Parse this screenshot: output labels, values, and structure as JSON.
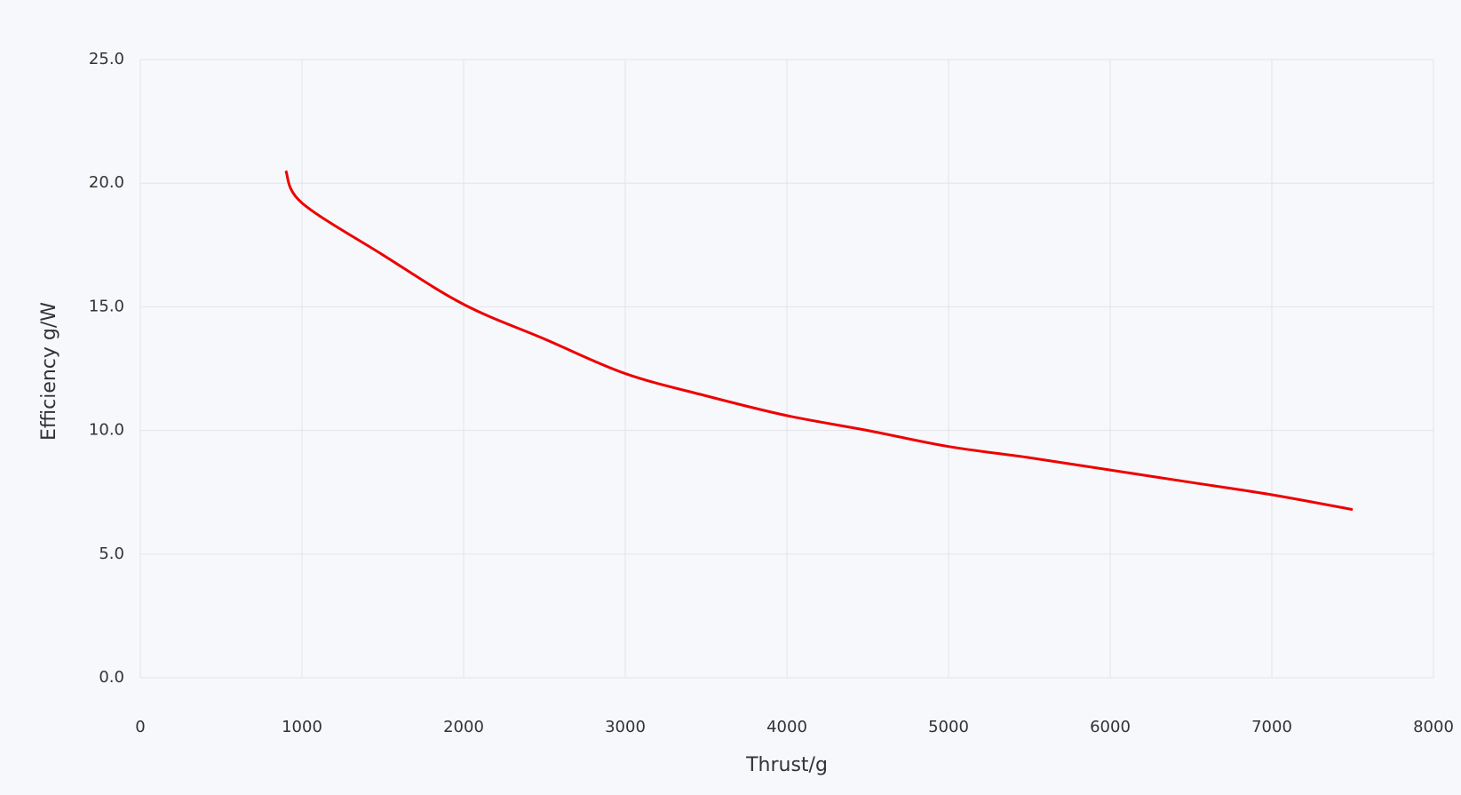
{
  "chart_data": {
    "type": "line",
    "x_label": "Thrust/g",
    "y_label": "Efficiency g/W",
    "x": [
      900,
      1000,
      1500,
      2000,
      2500,
      3000,
      3500,
      4000,
      4500,
      5000,
      5500,
      6000,
      6500,
      7000,
      7500
    ],
    "series": [
      {
        "color": "#ee0000",
        "values": [
          20.5,
          19.2,
          17.1,
          15.1,
          13.7,
          12.3,
          11.4,
          10.6,
          10.0,
          9.35,
          8.9,
          8.4,
          7.9,
          7.4,
          6.8
        ]
      }
    ],
    "xlim": [
      0,
      8000
    ],
    "xticks": [
      0,
      1000,
      2000,
      3000,
      4000,
      5000,
      6000,
      7000,
      8000
    ],
    "ylim": [
      0,
      25
    ],
    "yticks": [
      {
        "value": 0,
        "label": "0.0"
      },
      {
        "value": 5,
        "label": "5.0"
      },
      {
        "value": 10,
        "label": "10.0"
      },
      {
        "value": 15,
        "label": "15.0"
      },
      {
        "value": 20,
        "label": "20.0"
      },
      {
        "value": 25,
        "label": "25.0"
      }
    ],
    "grid": true
  }
}
